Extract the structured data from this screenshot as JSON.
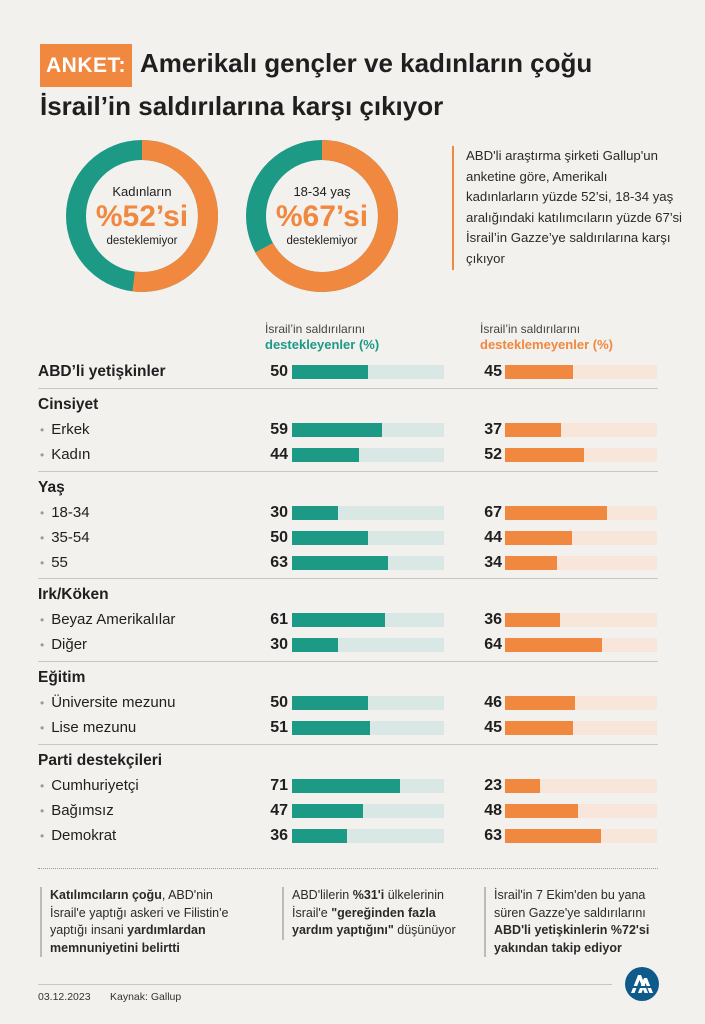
{
  "header": {
    "tag": "ANKET:",
    "title_line1": "Amerikalı gençler ve kadınların çoğu",
    "title_line2": "İsrail’in saldırılarına karşı çıkıyor"
  },
  "donuts": [
    {
      "label": "Kadınların",
      "pct_text": "%52’si",
      "sub": "desteklemiyor",
      "value": 52,
      "color_main": "#f0883f",
      "color_rest": "#1d9a86"
    },
    {
      "label": "18-34 yaş",
      "pct_text": "%67’si",
      "sub": "desteklemiyor",
      "value": 67,
      "color_main": "#f0883f",
      "color_rest": "#1d9a86"
    }
  ],
  "note": "ABD'li araştırma şirketi Gallup'un anketine göre, Amerikalı kadınlarların yüzde 52’si, 18-34 yaş aralığındaki katılımcıların yüzde 67’si İsrail’in Gazze’ye saldırılarına karşı çıkıyor",
  "columns": {
    "support_line1": "İsrail’in saldırılarını",
    "support_line2": "destekleyenler (%)",
    "oppose_line1": "İsrail’in saldırılarını",
    "oppose_line2": "desteklemeyenler (%)"
  },
  "colors": {
    "teal": "#1d9a86",
    "teal_track": "#d9e8e5",
    "orange": "#f0883f",
    "orange_track": "#f7e6d9"
  },
  "chart_data": {
    "type": "bar",
    "scale_max": 100,
    "series": [
      {
        "name": "destekleyenler (%)"
      },
      {
        "name": "desteklemeyenler (%)"
      }
    ],
    "groups": [
      {
        "title": "ABD’li yetişkinler",
        "rows": [
          {
            "label": "",
            "support": 50,
            "oppose": 45
          }
        ]
      },
      {
        "title": "Cinsiyet",
        "rows": [
          {
            "label": "Erkek",
            "support": 59,
            "oppose": 37
          },
          {
            "label": "Kadın",
            "support": 44,
            "oppose": 52
          }
        ]
      },
      {
        "title": "Yaş",
        "rows": [
          {
            "label": "18-34",
            "support": 30,
            "oppose": 67
          },
          {
            "label": "35-54",
            "support": 50,
            "oppose": 44
          },
          {
            "label": "55",
            "support": 63,
            "oppose": 34
          }
        ]
      },
      {
        "title": "Irk/Köken",
        "rows": [
          {
            "label": "Beyaz Amerikalılar",
            "support": 61,
            "oppose": 36
          },
          {
            "label": "Diğer",
            "support": 30,
            "oppose": 64
          }
        ]
      },
      {
        "title": "Eğitim",
        "rows": [
          {
            "label": "Üniversite mezunu",
            "support": 50,
            "oppose": 46
          },
          {
            "label": "Lise mezunu",
            "support": 51,
            "oppose": 45
          }
        ]
      },
      {
        "title": "Parti destekçileri",
        "rows": [
          {
            "label": "Cumhuriyetçi",
            "support": 71,
            "oppose": 23
          },
          {
            "label": "Bağımsız",
            "support": 47,
            "oppose": 48
          },
          {
            "label": "Demokrat",
            "support": 36,
            "oppose": 63
          }
        ]
      }
    ]
  },
  "bottom_notes": [
    {
      "parts": [
        {
          "t": "Katılımcıların çoğu",
          "b": true
        },
        {
          "t": ", ABD'nin İsrail'e yaptığı askeri ve Filistin'e yaptığı insani ",
          "b": false
        },
        {
          "t": "yardımlardan memnuniyetini belirtti",
          "b": true
        }
      ]
    },
    {
      "parts": [
        {
          "t": "ABD'lilerin ",
          "b": false
        },
        {
          "t": "%31'i",
          "b": true
        },
        {
          "t": " ülkelerinin İsrail'e ",
          "b": false
        },
        {
          "t": "\"gereğinden fazla yardım yaptığını\"",
          "b": true
        },
        {
          "t": " düşünüyor",
          "b": false
        }
      ]
    },
    {
      "parts": [
        {
          "t": "İsrail'in 7 Ekim'den bu yana süren Gazze'ye saldırılarını ",
          "b": false
        },
        {
          "t": "ABD'li yetişkinlerin %72'si yakından takip ediyor",
          "b": true
        }
      ]
    }
  ],
  "footer": {
    "date": "03.12.2023",
    "source": "Kaynak: Gallup",
    "logo": "aa-logo-icon"
  }
}
